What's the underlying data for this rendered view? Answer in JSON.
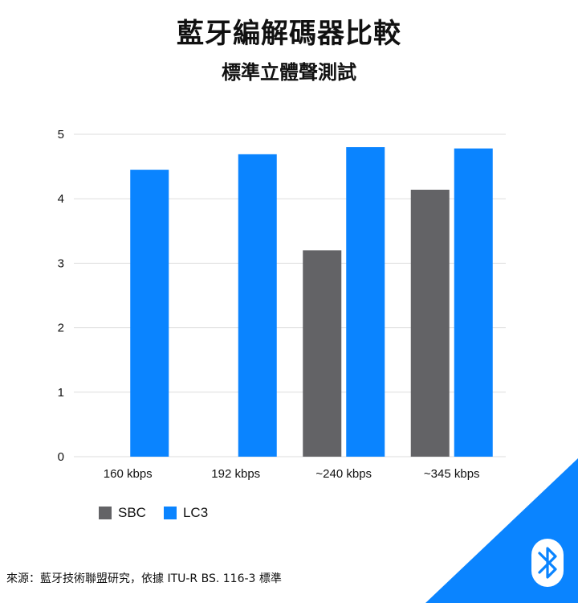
{
  "title": "藍牙編解碼器比較",
  "subtitle": "標準立體聲測試",
  "source": "來源：藍牙技術聯盟研究，依據 ITU-R BS. 116-3 標準",
  "colors": {
    "sbc": "#636366",
    "lc3": "#0a84ff",
    "corner": "#0a84ff",
    "grid": "#dddddd"
  },
  "brand_icon": "bluetooth-icon",
  "chart_data": {
    "type": "bar",
    "title": "藍牙編解碼器比較",
    "subtitle": "標準立體聲測試",
    "xlabel": "",
    "ylabel": "",
    "categories": [
      "160 kbps",
      "192 kbps",
      "~240 kbps",
      "~345 kbps"
    ],
    "series": [
      {
        "name": "SBC",
        "values": [
          null,
          null,
          3.2,
          4.14
        ]
      },
      {
        "name": "LC3",
        "values": [
          4.45,
          4.69,
          4.8,
          4.78
        ]
      }
    ],
    "ylim": [
      0,
      5
    ],
    "yticks": [
      0,
      1,
      2,
      3,
      4,
      5
    ],
    "grid": true,
    "legend_position": "bottom-left"
  }
}
